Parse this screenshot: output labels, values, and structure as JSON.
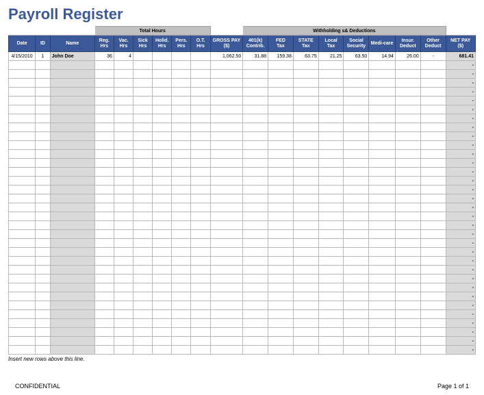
{
  "title": "Payroll Register",
  "group_headers": {
    "total_hours": "Total Hours",
    "withholding": "Withholding s& Deductions"
  },
  "columns": [
    {
      "key": "date",
      "label": "Date"
    },
    {
      "key": "id",
      "label": "ID"
    },
    {
      "key": "name",
      "label": "Name"
    },
    {
      "key": "reg_hrs",
      "label": "Reg.\nHrs"
    },
    {
      "key": "vac_hrs",
      "label": "Vac.\nHrs"
    },
    {
      "key": "sick_hrs",
      "label": "Sick\nHrs"
    },
    {
      "key": "holid_hrs",
      "label": "Holid.\nHrs"
    },
    {
      "key": "pers_hrs",
      "label": "Pers.\nHrs"
    },
    {
      "key": "ot_hrs",
      "label": "O.T.\nHrs"
    },
    {
      "key": "gross",
      "label": "GROSS PAY\n($)"
    },
    {
      "key": "401k",
      "label": "401(k)\nContrib."
    },
    {
      "key": "fed",
      "label": "FED\nTax"
    },
    {
      "key": "state",
      "label": "STATE\nTax"
    },
    {
      "key": "local",
      "label": "Local\nTax"
    },
    {
      "key": "ss",
      "label": "Social\nSecurity"
    },
    {
      "key": "medi",
      "label": "Medi-care"
    },
    {
      "key": "insur",
      "label": "Insur.\nDeduct"
    },
    {
      "key": "other",
      "label": "Other\nDeduct"
    },
    {
      "key": "net",
      "label": "NET PAY\n($)"
    }
  ],
  "rows": [
    {
      "date": "4/15/2010",
      "id": "1",
      "name": "John Doe",
      "reg_hrs": "36",
      "vac_hrs": "4",
      "sick_hrs": "",
      "holid_hrs": "",
      "pers_hrs": "",
      "ot_hrs": "",
      "gross": "1,062.50",
      "401k": "31.88",
      "fed": "159.38",
      "state": "63.75",
      "local": "21.25",
      "ss": "63.50",
      "medi": "14.94",
      "insur": "26.00",
      "other": "-",
      "net": "681.41"
    }
  ],
  "empty_row_count": 33,
  "insert_note": "Insert new rows above this line.",
  "footer_left": "CONFIDENTIAL",
  "footer_right": "Page 1 of 1",
  "colors": {
    "title": "#3b5998",
    "header_bg": "#3b5998",
    "header_fg": "#ffffff",
    "group_bg": "#c0c0c0",
    "shade_bg": "#d9d9d9",
    "border": "#b8b8b8"
  }
}
